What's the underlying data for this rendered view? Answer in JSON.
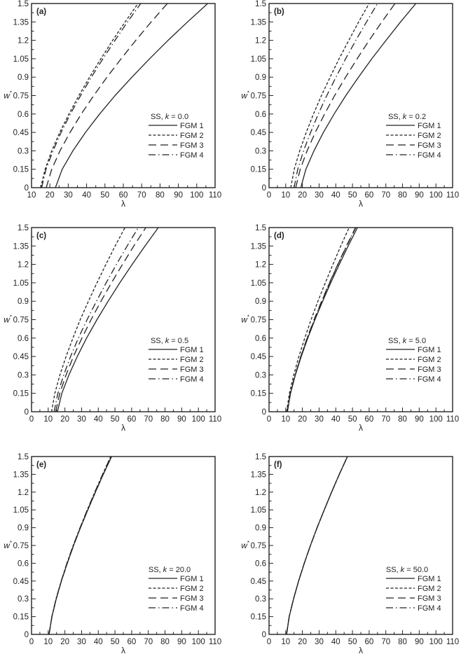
{
  "figure": {
    "y_label": "w",
    "y_label_sup": "*",
    "x_label": "λ"
  },
  "legend_labels": [
    "FGM 1",
    "FGM 2",
    "FGM 3",
    "FGM 4"
  ],
  "line_color": "#222222",
  "chart_data": [
    {
      "type": "line",
      "panel": "(a)",
      "title": "SS, k = 0.0",
      "legend_prefix": "SS, ",
      "k_label": "k",
      "k_value": "= 0.0",
      "xlabel": "λ",
      "ylabel": "w*",
      "xlim": [
        10,
        110
      ],
      "ylim": [
        0,
        1.5
      ],
      "xticks": [
        10,
        20,
        30,
        40,
        50,
        60,
        70,
        80,
        90,
        100,
        110
      ],
      "yticks": [
        0,
        0.15,
        0.3,
        0.45,
        0.6,
        0.75,
        0.9,
        1.05,
        1.2,
        1.35,
        1.5
      ],
      "y": [
        0,
        0.15,
        0.3,
        0.45,
        0.6,
        0.75,
        0.9,
        1.05,
        1.2,
        1.35,
        1.5
      ],
      "series": [
        {
          "name": "FGM 1",
          "style": "solid",
          "x": [
            23,
            26.7,
            32.5,
            39.4,
            47.1,
            55.5,
            64.7,
            74.3,
            84.4,
            95.0,
            106
          ]
        },
        {
          "name": "FGM 2",
          "style": "dash",
          "x": [
            15,
            17.4,
            21.0,
            25.4,
            30.4,
            35.8,
            41.6,
            47.8,
            54.2,
            61.0,
            68
          ]
        },
        {
          "name": "FGM 3",
          "style": "longdash",
          "x": [
            18,
            21.0,
            25.5,
            31.0,
            37.1,
            43.9,
            51.1,
            58.8,
            66.8,
            75.2,
            84
          ]
        },
        {
          "name": "FGM 4",
          "style": "dashdot",
          "x": [
            15.5,
            17.9,
            21.7,
            26.1,
            31.2,
            36.7,
            42.6,
            48.9,
            55.5,
            62.3,
            69.5
          ]
        }
      ],
      "legend_position": "lower right",
      "grid": false
    },
    {
      "type": "line",
      "panel": "(b)",
      "title": "SS, k = 0.2",
      "legend_prefix": "SS, ",
      "k_label": "k",
      "k_value": "= 0.2",
      "xlabel": "λ",
      "ylabel": "w*",
      "xlim": [
        0,
        110
      ],
      "ylim": [
        0,
        1.5
      ],
      "xticks": [
        0,
        10,
        20,
        30,
        40,
        50,
        60,
        70,
        80,
        90,
        100,
        110
      ],
      "yticks": [
        0,
        0.15,
        0.3,
        0.45,
        0.6,
        0.75,
        0.9,
        1.05,
        1.2,
        1.35,
        1.5
      ],
      "y": [
        0,
        0.15,
        0.3,
        0.45,
        0.6,
        0.75,
        0.9,
        1.05,
        1.2,
        1.35,
        1.5
      ],
      "series": [
        {
          "name": "FGM 1",
          "style": "solid",
          "x": [
            19,
            22.1,
            26.9,
            32.6,
            39.0,
            46.0,
            53.6,
            61.6,
            70.1,
            78.8,
            88
          ]
        },
        {
          "name": "FGM 2",
          "style": "dash",
          "x": [
            13,
            15.1,
            18.4,
            22.3,
            26.6,
            31.4,
            36.6,
            42.0,
            47.8,
            53.7,
            60
          ]
        },
        {
          "name": "FGM 3",
          "style": "longdash",
          "x": [
            16,
            18.7,
            22.8,
            27.7,
            33.3,
            39.3,
            45.9,
            52.8,
            60.0,
            67.6,
            75.5
          ]
        },
        {
          "name": "FGM 4",
          "style": "dashdot",
          "x": [
            15,
            17.2,
            20.7,
            24.9,
            29.5,
            34.6,
            40.1,
            45.9,
            52.0,
            58.4,
            65
          ]
        }
      ],
      "legend_position": "lower right",
      "grid": false
    },
    {
      "type": "line",
      "panel": "(c)",
      "title": "SS, k = 0.5",
      "legend_prefix": "SS, ",
      "k_label": "k",
      "k_value": "= 0.5",
      "xlabel": "λ",
      "ylabel": "w*",
      "xlim": [
        0,
        110
      ],
      "ylim": [
        0,
        1.5
      ],
      "xticks": [
        0,
        10,
        20,
        30,
        40,
        50,
        60,
        70,
        80,
        90,
        100,
        110
      ],
      "yticks": [
        0,
        0.15,
        0.3,
        0.45,
        0.6,
        0.75,
        0.9,
        1.05,
        1.2,
        1.35,
        1.5
      ],
      "y": [
        0,
        0.15,
        0.3,
        0.45,
        0.6,
        0.75,
        0.9,
        1.05,
        1.2,
        1.35,
        1.5
      ],
      "series": [
        {
          "name": "FGM 1",
          "style": "solid",
          "x": [
            15.5,
            18.2,
            22.4,
            27.4,
            33.0,
            39.2,
            45.9,
            52.9,
            60.3,
            68.0,
            76
          ]
        },
        {
          "name": "FGM 2",
          "style": "dash",
          "x": [
            12,
            14.0,
            17.0,
            20.7,
            24.8,
            29.2,
            34.1,
            39.2,
            44.6,
            50.1,
            56
          ]
        },
        {
          "name": "FGM 3",
          "style": "longdash",
          "x": [
            14.5,
            16.9,
            20.7,
            25.1,
            30.2,
            35.7,
            41.6,
            47.9,
            54.5,
            61.3,
            68.5
          ]
        },
        {
          "name": "FGM 4",
          "style": "dashdot",
          "x": [
            13.5,
            15.8,
            19.3,
            23.4,
            28.1,
            33.3,
            38.9,
            44.7,
            50.9,
            57.3,
            64
          ]
        }
      ],
      "legend_position": "lower right",
      "grid": false
    },
    {
      "type": "line",
      "panel": "(d)",
      "title": "SS, k = 5.0",
      "legend_prefix": "SS, ",
      "k_label": "k",
      "k_value": "= 5.0",
      "xlabel": "λ",
      "ylabel": "w*",
      "xlim": [
        0,
        110
      ],
      "ylim": [
        0,
        1.5
      ],
      "xticks": [
        0,
        10,
        20,
        30,
        40,
        50,
        60,
        70,
        80,
        90,
        100,
        110
      ],
      "yticks": [
        0,
        0.15,
        0.3,
        0.45,
        0.6,
        0.75,
        0.9,
        1.05,
        1.2,
        1.35,
        1.5
      ],
      "y": [
        0,
        0.15,
        0.3,
        0.45,
        0.6,
        0.75,
        0.9,
        1.05,
        1.2,
        1.35,
        1.5
      ],
      "series": [
        {
          "name": "FGM 1",
          "style": "solid",
          "x": [
            11,
            12.9,
            15.8,
            19.3,
            23.2,
            27.5,
            32.1,
            37.0,
            42.1,
            47.4,
            53
          ]
        },
        {
          "name": "FGM 2",
          "style": "dash",
          "x": [
            10.5,
            12.2,
            14.8,
            17.9,
            21.4,
            25.2,
            29.3,
            33.7,
            38.3,
            43.0,
            48
          ]
        },
        {
          "name": "FGM 3",
          "style": "longdash",
          "x": [
            11,
            12.8,
            15.7,
            19.1,
            22.9,
            27.1,
            31.6,
            36.3,
            41.3,
            46.5,
            52
          ]
        },
        {
          "name": "FGM 4",
          "style": "dashdot",
          "x": [
            10.8,
            12.7,
            15.6,
            19.0,
            22.8,
            27.0,
            31.5,
            36.2,
            41.2,
            46.4,
            51.8
          ]
        }
      ],
      "legend_position": "lower right",
      "grid": false
    },
    {
      "type": "line",
      "panel": "(e)",
      "title": "SS, k = 20.0",
      "legend_prefix": "SS, ",
      "k_label": "k",
      "k_value": "= 20.0",
      "xlabel": "λ",
      "ylabel": "w*",
      "xlim": [
        0,
        110
      ],
      "ylim": [
        0,
        1.5
      ],
      "xticks": [
        0,
        10,
        20,
        30,
        40,
        50,
        60,
        70,
        80,
        90,
        100,
        110
      ],
      "yticks": [
        0,
        0.15,
        0.3,
        0.45,
        0.6,
        0.75,
        0.9,
        1.05,
        1.2,
        1.35,
        1.5
      ],
      "y": [
        0,
        0.15,
        0.3,
        0.45,
        0.6,
        0.75,
        0.9,
        1.05,
        1.2,
        1.35,
        1.5
      ],
      "series": [
        {
          "name": "FGM 1",
          "style": "solid",
          "x": [
            10.5,
            12.2,
            14.8,
            17.9,
            21.4,
            25.2,
            29.3,
            33.7,
            38.3,
            43.0,
            48
          ]
        },
        {
          "name": "FGM 2",
          "style": "dash",
          "x": [
            10.5,
            12.2,
            14.7,
            17.8,
            21.2,
            25.0,
            29.1,
            33.4,
            37.9,
            42.6,
            47.5
          ]
        },
        {
          "name": "FGM 3",
          "style": "longdash",
          "x": [
            10.5,
            12.2,
            14.8,
            17.9,
            21.4,
            25.2,
            29.3,
            33.7,
            38.3,
            43.0,
            48
          ]
        },
        {
          "name": "FGM 4",
          "style": "dashdot",
          "x": [
            10.5,
            12.2,
            14.7,
            17.8,
            21.2,
            25.0,
            29.1,
            33.4,
            37.9,
            42.6,
            47.5
          ]
        }
      ],
      "legend_position": "lower right",
      "grid": false
    },
    {
      "type": "line",
      "panel": "(f)",
      "title": "SS, k = 50.0",
      "legend_prefix": "SS, ",
      "k_label": "k",
      "k_value": "= 50.0",
      "xlabel": "λ",
      "ylabel": "w*",
      "xlim": [
        0,
        110
      ],
      "ylim": [
        0,
        1.5
      ],
      "xticks": [
        0,
        10,
        20,
        30,
        40,
        50,
        60,
        70,
        80,
        90,
        100,
        110
      ],
      "yticks": [
        0,
        0.15,
        0.3,
        0.45,
        0.6,
        0.75,
        0.9,
        1.05,
        1.2,
        1.35,
        1.5
      ],
      "y": [
        0,
        0.15,
        0.3,
        0.45,
        0.6,
        0.75,
        0.9,
        1.05,
        1.2,
        1.35,
        1.5
      ],
      "series": [
        {
          "name": "FGM 1",
          "style": "solid",
          "x": [
            10.5,
            12.1,
            14.7,
            17.7,
            21.1,
            24.8,
            28.8,
            33.1,
            37.5,
            42.1,
            47
          ]
        },
        {
          "name": "FGM 2",
          "style": "dash",
          "x": [
            10.5,
            12.1,
            14.7,
            17.7,
            21.1,
            24.8,
            28.8,
            33.1,
            37.5,
            42.1,
            47
          ]
        },
        {
          "name": "FGM 3",
          "style": "longdash",
          "x": [
            10.5,
            12.1,
            14.7,
            17.7,
            21.1,
            24.8,
            28.8,
            33.1,
            37.5,
            42.1,
            47
          ]
        },
        {
          "name": "FGM 4",
          "style": "dashdot",
          "x": [
            10.5,
            12.1,
            14.7,
            17.7,
            21.1,
            24.8,
            28.8,
            33.1,
            37.5,
            42.1,
            47
          ]
        }
      ],
      "legend_position": "lower right",
      "grid": false
    }
  ]
}
